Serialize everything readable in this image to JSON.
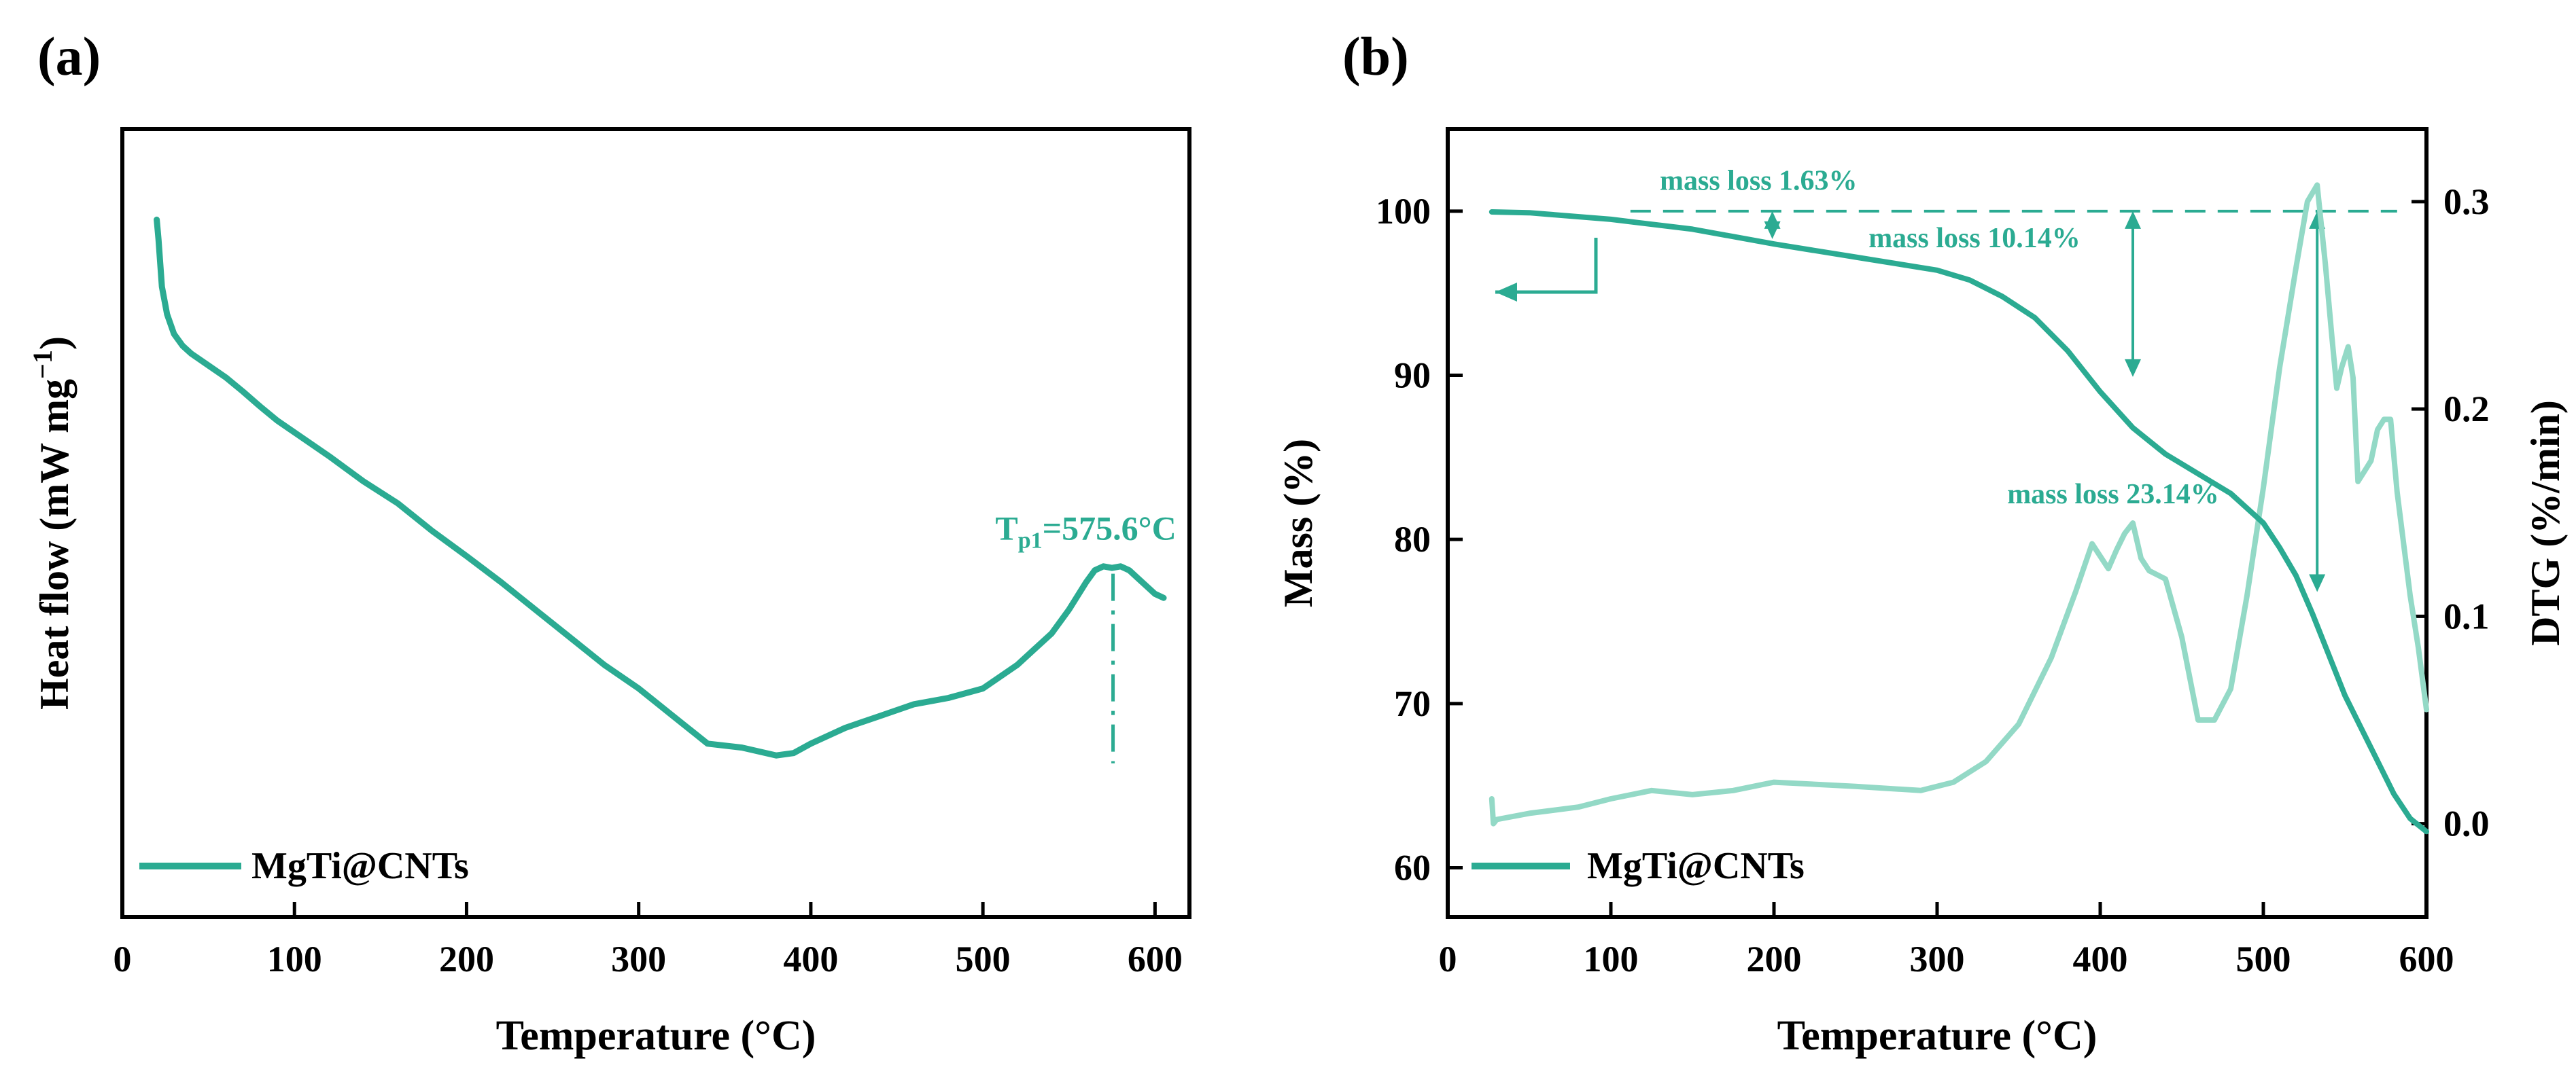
{
  "colors": {
    "main": "#2bab92",
    "dtg": "#93d9c6",
    "axis": "#000000"
  },
  "chart_data": [
    {
      "panel_label": "(a)",
      "type": "line",
      "xlabel": "Temperature (°C)",
      "ylabel_main": "Heat flow (mW mg",
      "ylabel_sup": "−1",
      "ylabel_tail": ")",
      "xlim": [
        0,
        620
      ],
      "ylim": [
        0,
        1
      ],
      "xticks": [
        0,
        100,
        200,
        300,
        400,
        500,
        600
      ],
      "xtick_labels": [
        "0",
        "100",
        "200",
        "300",
        "400",
        "500",
        "600"
      ],
      "legend": "MgTi@CNTs",
      "annotation": {
        "text_main": "T",
        "text_sub": "p1",
        "text_tail": "=575.6°C",
        "x": 575.6,
        "y_top": 0.44,
        "y_bottom": 0.195
      },
      "series": [
        {
          "name": "MgTi@CNTs",
          "x": [
            20,
            21,
            23,
            26,
            30,
            35,
            40,
            50,
            60,
            70,
            80,
            90,
            100,
            120,
            140,
            160,
            180,
            200,
            220,
            240,
            260,
            280,
            300,
            320,
            340,
            360,
            380,
            390,
            400,
            420,
            440,
            460,
            480,
            500,
            510,
            520,
            530,
            540,
            550,
            560,
            565,
            570,
            575,
            580,
            585,
            590,
            595,
            600,
            605
          ],
          "y": [
            0.885,
            0.86,
            0.8,
            0.765,
            0.74,
            0.725,
            0.715,
            0.7,
            0.685,
            0.667,
            0.648,
            0.63,
            0.615,
            0.585,
            0.553,
            0.525,
            0.49,
            0.458,
            0.425,
            0.39,
            0.355,
            0.32,
            0.29,
            0.255,
            0.22,
            0.215,
            0.205,
            0.208,
            0.22,
            0.24,
            0.255,
            0.27,
            0.278,
            0.29,
            0.305,
            0.32,
            0.34,
            0.36,
            0.39,
            0.425,
            0.44,
            0.445,
            0.443,
            0.445,
            0.44,
            0.43,
            0.42,
            0.41,
            0.405
          ]
        }
      ]
    },
    {
      "panel_label": "(b)",
      "type": "line",
      "xlabel": "Temperature (°C)",
      "ylabel_left": "Mass (%)",
      "ylabel_right": "DTG (%/min)",
      "xlim": [
        0,
        600
      ],
      "ylim_left": [
        57,
        105
      ],
      "ylim_right": [
        -0.045,
        0.335
      ],
      "xticks": [
        0,
        100,
        200,
        300,
        400,
        500,
        600
      ],
      "xtick_labels": [
        "0",
        "100",
        "200",
        "300",
        "400",
        "500",
        "600"
      ],
      "yticks_left": [
        60,
        70,
        80,
        90,
        100
      ],
      "ytick_labels_left": [
        "60",
        "70",
        "80",
        "90",
        "100"
      ],
      "yticks_right": [
        0.0,
        0.1,
        0.2,
        0.3
      ],
      "ytick_labels_right": [
        "0.0",
        "0.1",
        "0.2",
        "0.3"
      ],
      "legend": "MgTi@CNTs",
      "annotations": [
        {
          "text": "mass loss 1.63%",
          "x": 130,
          "y": 101.3
        },
        {
          "text": "mass loss 10.14%",
          "x": 258,
          "y": 97.8
        },
        {
          "text": "mass loss 23.14%",
          "x": 343,
          "y": 82.2
        }
      ],
      "reference_line_y": 100,
      "mass_series": {
        "name": "Mass",
        "x": [
          27,
          50,
          100,
          150,
          200,
          250,
          300,
          320,
          340,
          360,
          380,
          400,
          420,
          440,
          460,
          480,
          500,
          510,
          520,
          530,
          540,
          550,
          560,
          570,
          580,
          590,
          600
        ],
        "y": [
          99.95,
          99.9,
          99.5,
          98.9,
          98.0,
          97.2,
          96.4,
          95.8,
          94.8,
          93.5,
          91.5,
          89.0,
          86.8,
          85.2,
          84.0,
          82.8,
          81.0,
          79.5,
          77.8,
          75.5,
          73.0,
          70.5,
          68.5,
          66.5,
          64.5,
          63.0,
          62.2
        ]
      },
      "dtg_series": {
        "name": "DTG",
        "x": [
          27,
          28,
          30,
          50,
          80,
          100,
          125,
          150,
          175,
          200,
          250,
          290,
          310,
          330,
          350,
          370,
          385,
          395,
          405,
          410,
          415,
          420,
          425,
          430,
          440,
          450,
          460,
          470,
          480,
          490,
          500,
          510,
          520,
          527,
          533,
          538,
          542,
          545,
          548,
          552,
          555,
          558,
          562,
          566,
          570,
          574,
          578,
          582,
          586,
          590,
          595,
          600
        ],
        "y": [
          0.012,
          0.0,
          0.002,
          0.005,
          0.008,
          0.012,
          0.016,
          0.014,
          0.016,
          0.02,
          0.018,
          0.016,
          0.02,
          0.03,
          0.048,
          0.08,
          0.112,
          0.135,
          0.123,
          0.132,
          0.14,
          0.145,
          0.128,
          0.122,
          0.118,
          0.09,
          0.05,
          0.05,
          0.065,
          0.11,
          0.162,
          0.22,
          0.268,
          0.3,
          0.308,
          0.27,
          0.235,
          0.21,
          0.22,
          0.23,
          0.215,
          0.165,
          0.17,
          0.175,
          0.19,
          0.195,
          0.195,
          0.16,
          0.135,
          0.11,
          0.085,
          0.055
        ]
      }
    }
  ]
}
